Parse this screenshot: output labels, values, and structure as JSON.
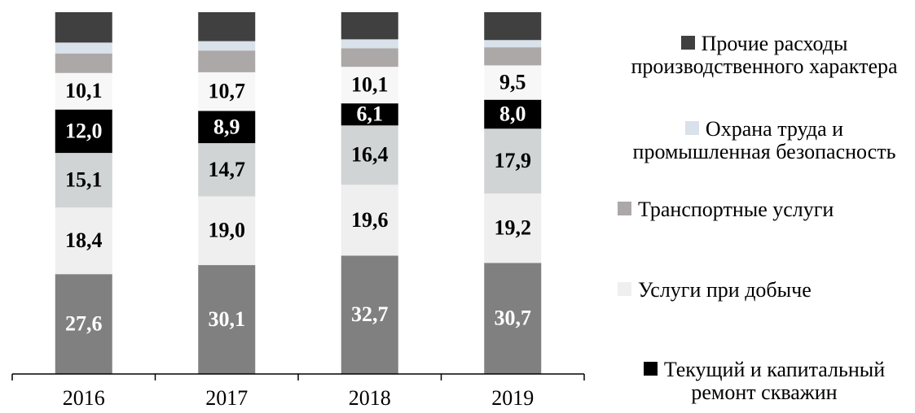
{
  "chart_data": {
    "type": "stacked_bar",
    "categories": [
      "2016",
      "2017",
      "2018",
      "2019"
    ],
    "ylim": [
      0,
      100
    ],
    "series": [
      {
        "color": "#808080",
        "values": [
          27.6,
          30.1,
          32.7,
          30.7
        ],
        "value_labels": [
          "27,6",
          "30,1",
          "32,7",
          "30,7"
        ]
      },
      {
        "name": "Услуги при добыче",
        "color": "#efefef",
        "values": [
          18.4,
          19.0,
          19.6,
          19.2
        ],
        "value_labels": [
          "18,4",
          "19,0",
          "19,6",
          "19,2"
        ]
      },
      {
        "color": "#d0d4d4",
        "values": [
          15.1,
          14.7,
          16.4,
          17.9
        ],
        "value_labels": [
          "15,1",
          "14,7",
          "16,4",
          "17,9"
        ]
      },
      {
        "name": "Текущий и капитальный ремонт скважин",
        "color": "#000000",
        "values": [
          12.0,
          8.9,
          6.1,
          8.0
        ],
        "value_labels": [
          "12,0",
          "8,9",
          "6,1",
          "8,0"
        ]
      },
      {
        "color": "#f7f7f7",
        "values": [
          10.1,
          10.7,
          10.1,
          9.5
        ],
        "value_labels": [
          "10,1",
          "10,7",
          "10,1",
          "9,5"
        ]
      },
      {
        "name": "Транспортные услуги",
        "color": "#aca8a8",
        "values": [
          5.4,
          6.0,
          5.1,
          5.0
        ]
      },
      {
        "name": "Охрана труда и промышленная безопасность",
        "color": "#d9e1ea",
        "values": [
          3.0,
          2.6,
          2.5,
          2.0
        ]
      },
      {
        "name": "Прочие расходы производственного характера",
        "color": "#404040",
        "values": [
          8.4,
          8.0,
          7.5,
          7.7
        ]
      }
    ]
  }
}
